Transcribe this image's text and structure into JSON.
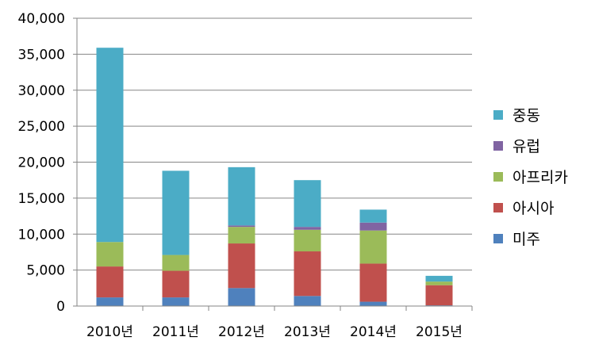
{
  "chart_data": {
    "type": "bar",
    "stacked": true,
    "categories": [
      "2010년",
      "2011년",
      "2012년",
      "2013년",
      "2014년",
      "2015년"
    ],
    "series": [
      {
        "name": "미주",
        "color": "#4F81BD",
        "values": [
          1200,
          1200,
          2500,
          1400,
          600,
          100
        ]
      },
      {
        "name": "아시아",
        "color": "#C0504D",
        "values": [
          4300,
          3700,
          6200,
          6200,
          5300,
          2800
        ]
      },
      {
        "name": "아프리카",
        "color": "#9BBB59",
        "values": [
          3400,
          2200,
          2300,
          3000,
          4600,
          500
        ]
      },
      {
        "name": "유럽",
        "color": "#8064A2",
        "values": [
          0,
          0,
          200,
          400,
          1100,
          0
        ]
      },
      {
        "name": "중동",
        "color": "#4BACC6",
        "values": [
          27000,
          11700,
          8100,
          6500,
          1800,
          800
        ]
      }
    ],
    "yticks": [
      "0",
      "5,000",
      "10,000",
      "15,000",
      "20,000",
      "25,000",
      "30,000",
      "35,000",
      "40,000"
    ],
    "ylim": [
      0,
      40000
    ],
    "grid": true,
    "legend": "right",
    "legend_order": [
      "중동",
      "유럽",
      "아프리카",
      "아시아",
      "미주"
    ]
  }
}
